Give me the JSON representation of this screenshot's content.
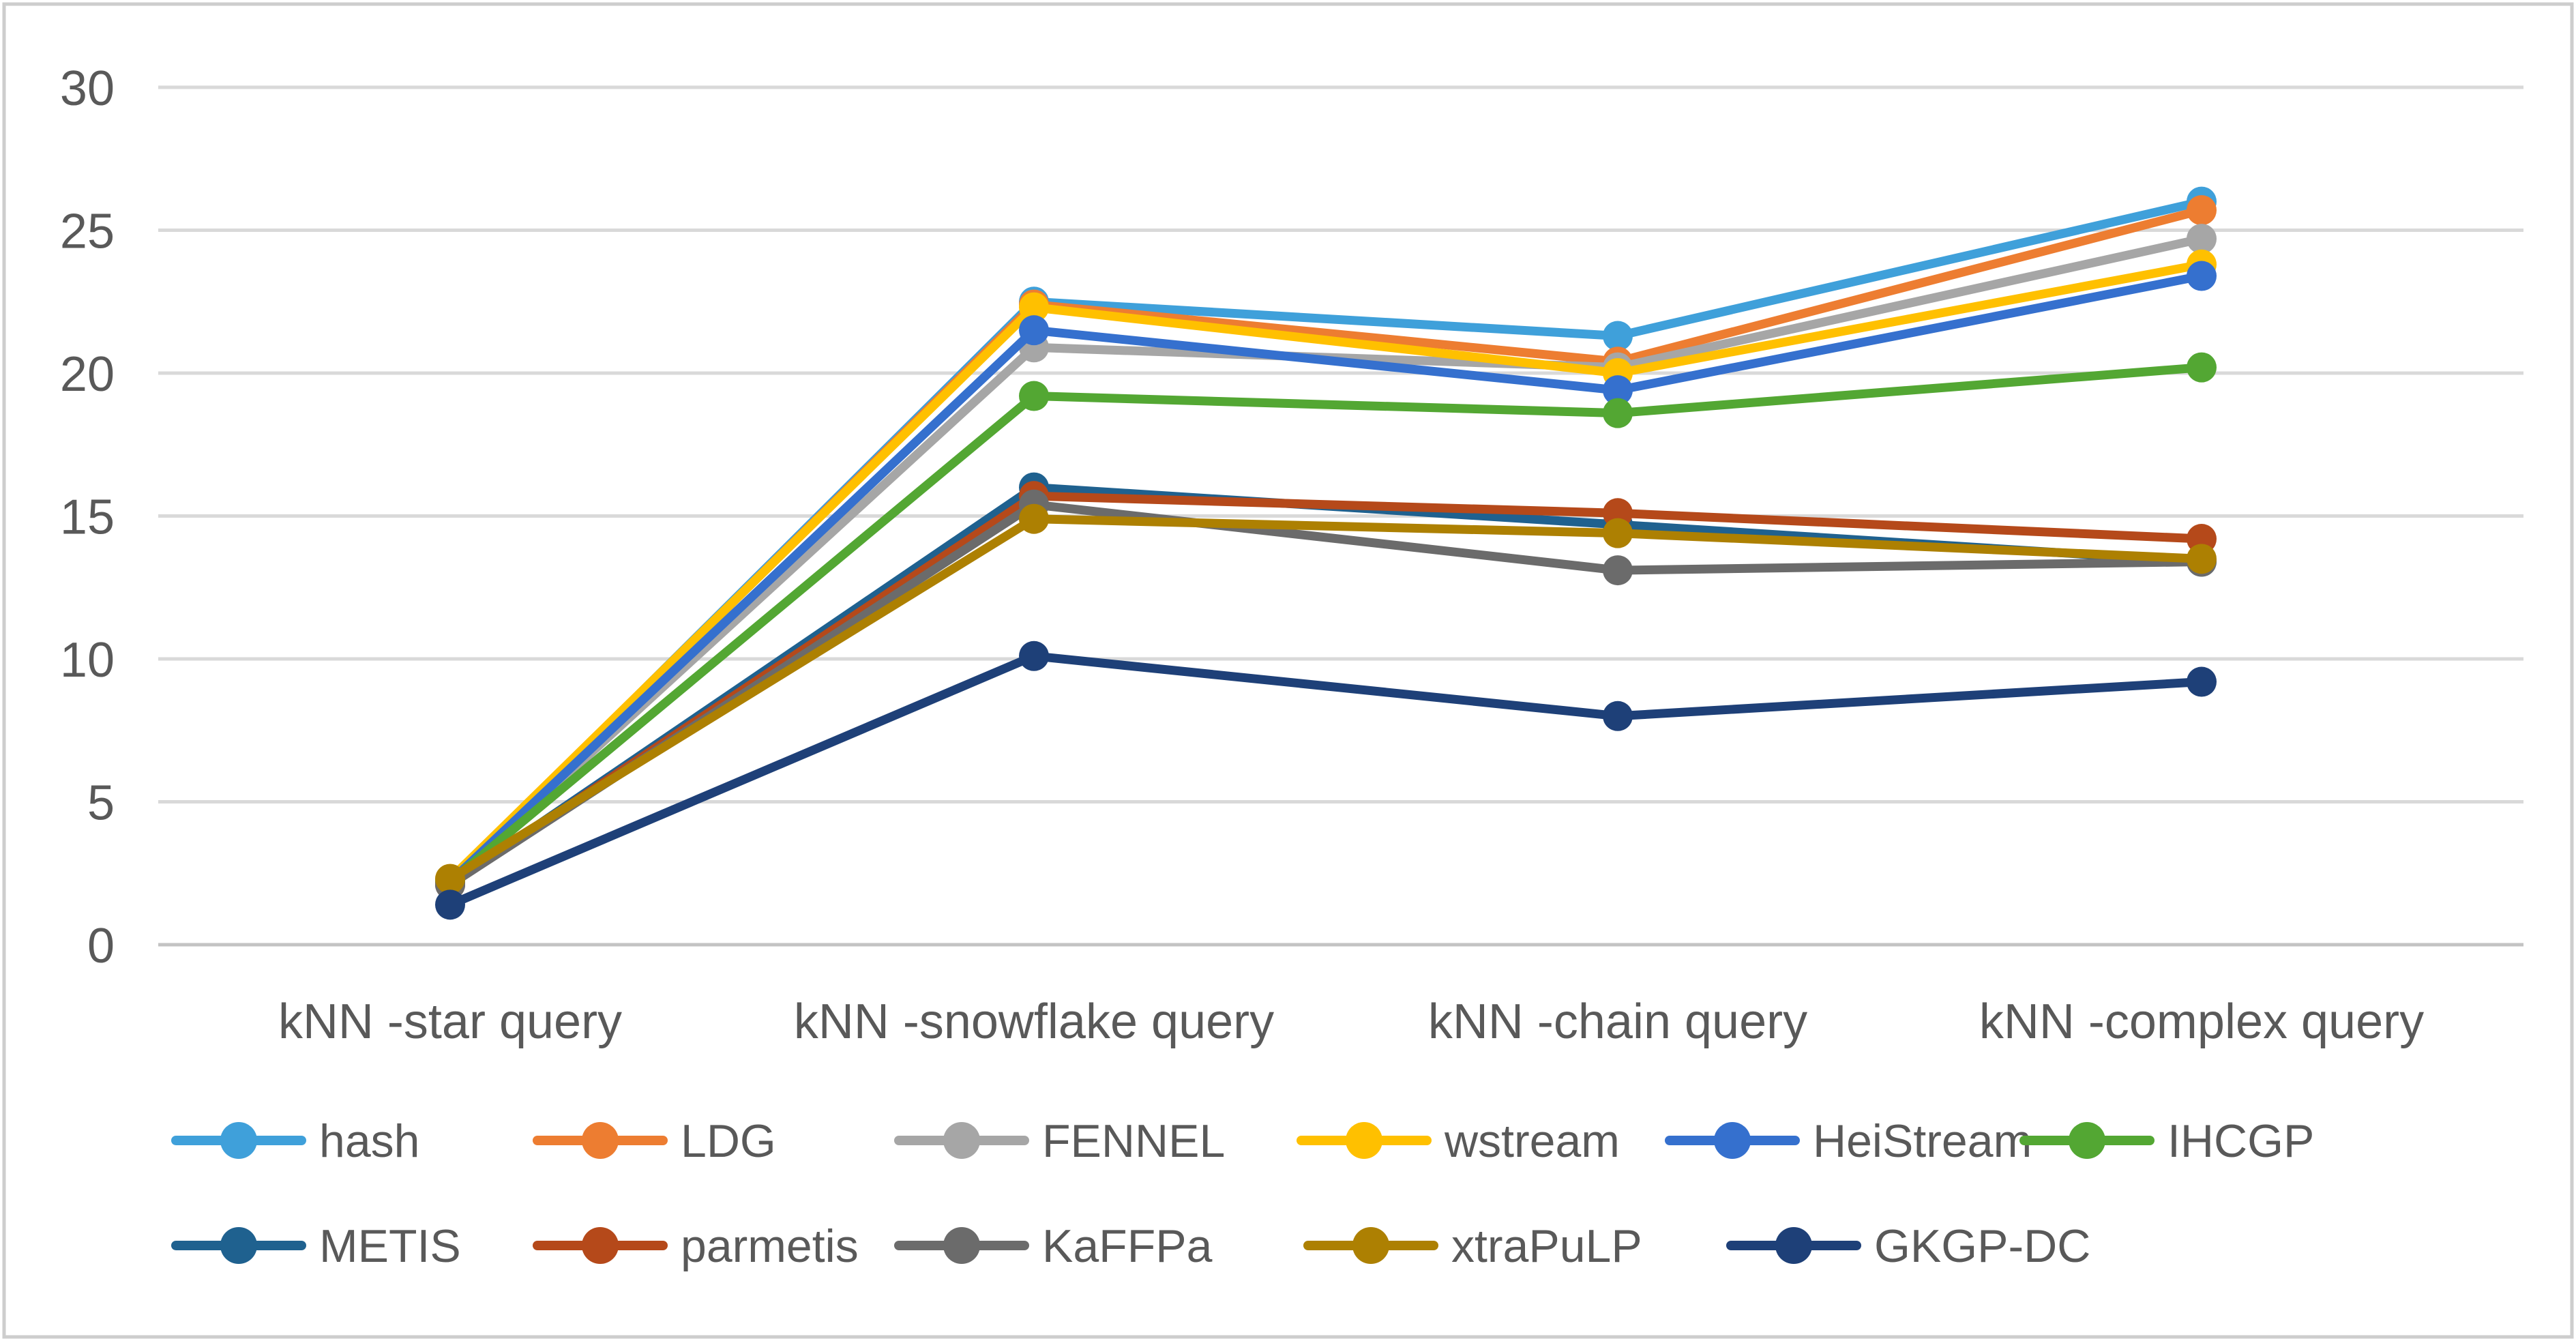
{
  "chart_data": {
    "type": "line",
    "title": "",
    "xlabel": "",
    "ylabel": "",
    "categories": [
      "kNN -star query",
      "kNN -snowflake query",
      "kNN -chain query",
      "kNN -complex query"
    ],
    "series": [
      {
        "name": "hash",
        "color": "#3FA0DA",
        "values": [
          2.2,
          22.5,
          21.3,
          26.0
        ]
      },
      {
        "name": "LDG",
        "color": "#ED7D31",
        "values": [
          2.2,
          22.4,
          20.4,
          25.7
        ]
      },
      {
        "name": "FENNEL",
        "color": "#A6A6A6",
        "values": [
          2.2,
          20.9,
          20.2,
          24.7
        ]
      },
      {
        "name": "wstream",
        "color": "#FFC000",
        "values": [
          2.3,
          22.3,
          20.0,
          23.8
        ]
      },
      {
        "name": "HeiStream",
        "color": "#3570CE",
        "values": [
          2.2,
          21.5,
          19.4,
          23.4
        ]
      },
      {
        "name": "IHCGP",
        "color": "#53A733",
        "values": [
          2.2,
          19.2,
          18.6,
          20.2
        ]
      },
      {
        "name": "METIS",
        "color": "#1F618F",
        "values": [
          2.1,
          16.0,
          14.7,
          13.4
        ]
      },
      {
        "name": "parmetis",
        "color": "#B5491A",
        "values": [
          2.1,
          15.7,
          15.1,
          14.2
        ]
      },
      {
        "name": "KaFFPa",
        "color": "#6B6B6B",
        "values": [
          2.1,
          15.4,
          13.1,
          13.4
        ]
      },
      {
        "name": "xtraPuLP",
        "color": "#AD8002",
        "values": [
          2.3,
          14.9,
          14.4,
          13.5
        ]
      },
      {
        "name": "GKGP-DC",
        "color": "#1E4078",
        "values": [
          1.4,
          10.1,
          8.0,
          9.2
        ]
      }
    ],
    "ylim": [
      0,
      30
    ],
    "yticks": [
      0,
      5,
      10,
      15,
      20,
      25,
      30
    ],
    "grid": true,
    "legend_position": "bottom",
    "legend_rows": [
      [
        "hash",
        "LDG",
        "FENNEL",
        "wstream",
        "HeiStream",
        "IHCGP"
      ],
      [
        "METIS",
        "parmetis",
        "KaFFPa",
        "xtraPuLP",
        "GKGP-DC"
      ]
    ],
    "colors": {
      "grid": "#D9D9D9",
      "axis": "#C3C3C3",
      "text": "#595959",
      "border": "#CDCDCD",
      "background": "#FFFFFF"
    }
  }
}
